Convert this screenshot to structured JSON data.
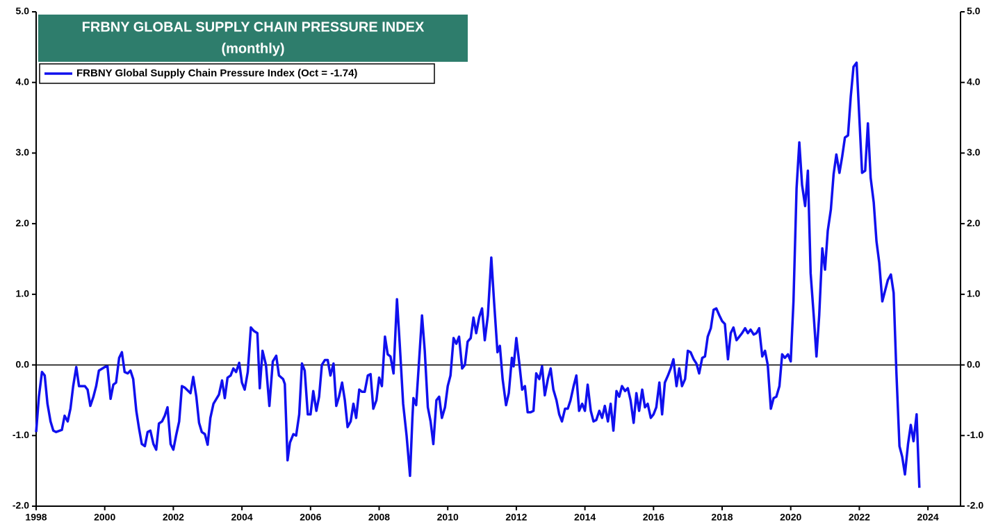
{
  "chart_data": {
    "type": "line",
    "title": "FRBNY GLOBAL SUPPLY CHAIN PRESSURE INDEX",
    "subtitle": "(monthly)",
    "xlim": [
      1998,
      2024.95
    ],
    "xticks": [
      1998,
      2000,
      2002,
      2004,
      2006,
      2008,
      2010,
      2012,
      2014,
      2016,
      2018,
      2020,
      2022,
      2024
    ],
    "ylim": [
      -2,
      5
    ],
    "yticks": [
      {
        "value": -2,
        "label": "-2.0"
      },
      {
        "value": -1,
        "label": "-1.0"
      },
      {
        "value": 0,
        "label": "0.0"
      },
      {
        "value": 1,
        "label": "1.0"
      },
      {
        "value": 2,
        "label": "2.0"
      },
      {
        "value": 3,
        "label": "3.0"
      },
      {
        "value": 4,
        "label": "4.0"
      },
      {
        "value": 5,
        "label": "5.0"
      }
    ],
    "y2lim": [
      -2,
      5
    ],
    "y2ticks": [
      {
        "value": -2,
        "label": "-2.0"
      },
      {
        "value": -1,
        "label": "-1.0"
      },
      {
        "value": 0,
        "label": "0.0"
      },
      {
        "value": 1,
        "label": "1.0"
      },
      {
        "value": 2,
        "label": "2.0"
      },
      {
        "value": 3,
        "label": "3.0"
      },
      {
        "value": 4,
        "label": "4.0"
      },
      {
        "value": 5,
        "label": "5.0"
      }
    ],
    "reference_line": 0,
    "legend": "top-left",
    "x": [
      1998,
      1998.08,
      1998.17,
      1998.25,
      1998.33,
      1998.42,
      1998.5,
      1998.58,
      1998.75,
      1998.83,
      1998.92,
      1999,
      1999.08,
      1999.17,
      1999.25,
      1999.42,
      1999.5,
      1999.58,
      1999.67,
      1999.75,
      1999.83,
      2000,
      2000.08,
      2000.17,
      2000.25,
      2000.33,
      2000.42,
      2000.5,
      2000.58,
      2000.67,
      2000.75,
      2000.83,
      2000.92,
      2001,
      2001.08,
      2001.17,
      2001.25,
      2001.33,
      2001.42,
      2001.5,
      2001.58,
      2001.67,
      2001.75,
      2001.83,
      2001.92,
      2002,
      2002.08,
      2002.17,
      2002.25,
      2002.33,
      2002.5,
      2002.58,
      2002.67,
      2002.75,
      2002.83,
      2002.92,
      2003,
      2003.08,
      2003.17,
      2003.33,
      2003.42,
      2003.5,
      2003.58,
      2003.67,
      2003.75,
      2003.83,
      2003.92,
      2004,
      2004.08,
      2004.17,
      2004.26,
      2004.35,
      2004.45,
      2004.52,
      2004.6,
      2004.7,
      2004.8,
      2004.9,
      2005,
      2005.08,
      2005.2,
      2005.25,
      2005.33,
      2005.4,
      2005.5,
      2005.58,
      2005.67,
      2005.75,
      2005.83,
      2005.92,
      2006,
      2006.08,
      2006.17,
      2006.25,
      2006.33,
      2006.42,
      2006.5,
      2006.58,
      2006.67,
      2006.75,
      2006.83,
      2006.92,
      2007,
      2007.08,
      2007.17,
      2007.25,
      2007.33,
      2007.42,
      2007.5,
      2007.58,
      2007.67,
      2007.75,
      2007.83,
      2007.92,
      2008,
      2008.08,
      2008.17,
      2008.25,
      2008.33,
      2008.42,
      2008.52,
      2008.6,
      2008.7,
      2008.8,
      2008.9,
      2008.97,
      2009,
      2009.08,
      2009.17,
      2009.25,
      2009.33,
      2009.42,
      2009.5,
      2009.58,
      2009.67,
      2009.75,
      2009.83,
      2009.92,
      2010,
      2010.08,
      2010.17,
      2010.25,
      2010.33,
      2010.42,
      2010.5,
      2010.58,
      2010.67,
      2010.75,
      2010.83,
      2010.92,
      2011,
      2011.08,
      2011.17,
      2011.27,
      2011.35,
      2011.45,
      2011.52,
      2011.6,
      2011.7,
      2011.78,
      2011.87,
      2011.92,
      2012,
      2012.08,
      2012.17,
      2012.25,
      2012.33,
      2012.42,
      2012.5,
      2012.58,
      2012.67,
      2012.75,
      2012.83,
      2012.92,
      2013,
      2013.08,
      2013.17,
      2013.25,
      2013.33,
      2013.42,
      2013.5,
      2013.58,
      2013.67,
      2013.75,
      2013.83,
      2013.92,
      2014,
      2014.08,
      2014.17,
      2014.25,
      2014.33,
      2014.42,
      2014.5,
      2014.58,
      2014.67,
      2014.75,
      2014.83,
      2014.92,
      2015,
      2015.08,
      2015.17,
      2015.25,
      2015.33,
      2015.42,
      2015.5,
      2015.58,
      2015.67,
      2015.75,
      2015.83,
      2015.92,
      2016,
      2016.08,
      2016.17,
      2016.25,
      2016.33,
      2016.42,
      2016.5,
      2016.58,
      2016.67,
      2016.75,
      2016.83,
      2016.92,
      2017,
      2017.08,
      2017.17,
      2017.25,
      2017.33,
      2017.42,
      2017.5,
      2017.58,
      2017.67,
      2017.75,
      2017.83,
      2017.92,
      2018,
      2018.08,
      2018.17,
      2018.25,
      2018.33,
      2018.42,
      2018.5,
      2018.58,
      2018.67,
      2018.75,
      2018.83,
      2018.92,
      2019,
      2019.08,
      2019.17,
      2019.25,
      2019.33,
      2019.42,
      2019.5,
      2019.58,
      2019.67,
      2019.75,
      2019.83,
      2019.92,
      2020,
      2020.08,
      2020.17,
      2020.25,
      2020.33,
      2020.42,
      2020.5,
      2020.58,
      2020.67,
      2020.75,
      2020.83,
      2020.92,
      2021,
      2021.08,
      2021.17,
      2021.25,
      2021.33,
      2021.42,
      2021.5,
      2021.58,
      2021.67,
      2021.75,
      2021.83,
      2021.92,
      2022,
      2022.08,
      2022.17,
      2022.25,
      2022.33,
      2022.42,
      2022.5,
      2022.58,
      2022.67,
      2022.75,
      2022.83,
      2022.92,
      2023,
      2023.08,
      2023.17,
      2023.25,
      2023.33,
      2023.42,
      2023.5,
      2023.58,
      2023.67,
      2023.75
    ],
    "series": [
      {
        "name": "FRBNY Global Supply Chain Pressure Index (Oct = -1.74)",
        "color": "#1010ee",
        "values": [
          -0.95,
          -0.45,
          -0.1,
          -0.15,
          -0.55,
          -0.8,
          -0.93,
          -0.95,
          -0.92,
          -0.72,
          -0.8,
          -0.62,
          -0.3,
          -0.03,
          -0.3,
          -0.3,
          -0.35,
          -0.58,
          -0.45,
          -0.3,
          -0.08,
          -0.03,
          -0.02,
          -0.48,
          -0.28,
          -0.25,
          0.1,
          0.18,
          -0.1,
          -0.12,
          -0.08,
          -0.2,
          -0.65,
          -0.9,
          -1.12,
          -1.15,
          -0.95,
          -0.93,
          -1.12,
          -1.2,
          -0.83,
          -0.8,
          -0.72,
          -0.6,
          -1.12,
          -1.2,
          -1.0,
          -0.8,
          -0.3,
          -0.32,
          -0.4,
          -0.17,
          -0.45,
          -0.82,
          -0.95,
          -0.98,
          -1.13,
          -0.75,
          -0.55,
          -0.42,
          -0.22,
          -0.47,
          -0.18,
          -0.15,
          -0.05,
          -0.1,
          0.03,
          -0.25,
          -0.35,
          -0.1,
          0.53,
          0.48,
          0.45,
          -0.33,
          0.2,
          0.0,
          -0.58,
          0.05,
          0.13,
          -0.15,
          -0.2,
          -0.27,
          -1.35,
          -1.1,
          -0.98,
          -1.0,
          -0.7,
          0.02,
          -0.08,
          -0.7,
          -0.7,
          -0.37,
          -0.65,
          -0.45,
          0.0,
          0.07,
          0.07,
          -0.15,
          0.02,
          -0.58,
          -0.45,
          -0.25,
          -0.5,
          -0.88,
          -0.8,
          -0.55,
          -0.75,
          -0.35,
          -0.38,
          -0.38,
          -0.15,
          -0.13,
          -0.62,
          -0.5,
          -0.18,
          -0.3,
          0.4,
          0.15,
          0.12,
          -0.12,
          0.93,
          0.3,
          -0.55,
          -1.0,
          -1.57,
          -0.75,
          -0.47,
          -0.57,
          0.1,
          0.7,
          0.2,
          -0.6,
          -0.8,
          -1.12,
          -0.5,
          -0.45,
          -0.75,
          -0.6,
          -0.3,
          -0.15,
          0.38,
          0.3,
          0.4,
          -0.05,
          0.0,
          0.33,
          0.38,
          0.67,
          0.45,
          0.68,
          0.8,
          0.35,
          0.7,
          1.52,
          0.9,
          0.18,
          0.27,
          -0.2,
          -0.57,
          -0.4,
          0.1,
          -0.02,
          0.38,
          0.05,
          -0.35,
          -0.3,
          -0.67,
          -0.67,
          -0.65,
          -0.12,
          -0.2,
          -0.02,
          -0.43,
          -0.2,
          -0.05,
          -0.35,
          -0.5,
          -0.7,
          -0.8,
          -0.62,
          -0.62,
          -0.5,
          -0.3,
          -0.15,
          -0.65,
          -0.55,
          -0.65,
          -0.28,
          -0.65,
          -0.8,
          -0.78,
          -0.65,
          -0.75,
          -0.58,
          -0.8,
          -0.55,
          -0.93,
          -0.37,
          -0.45,
          -0.3,
          -0.37,
          -0.33,
          -0.5,
          -0.82,
          -0.4,
          -0.65,
          -0.35,
          -0.6,
          -0.55,
          -0.75,
          -0.7,
          -0.6,
          -0.25,
          -0.7,
          -0.25,
          -0.15,
          -0.05,
          0.08,
          -0.3,
          -0.05,
          -0.3,
          -0.2,
          0.2,
          0.18,
          0.08,
          0.02,
          -0.12,
          0.1,
          0.12,
          0.4,
          0.52,
          0.78,
          0.8,
          0.7,
          0.62,
          0.58,
          0.08,
          0.45,
          0.53,
          0.35,
          0.4,
          0.45,
          0.52,
          0.45,
          0.5,
          0.43,
          0.45,
          0.52,
          0.12,
          0.2,
          0.0,
          -0.62,
          -0.47,
          -0.45,
          -0.3,
          0.15,
          0.1,
          0.15,
          0.05,
          0.9,
          2.5,
          3.15,
          2.55,
          2.25,
          2.75,
          1.3,
          0.7,
          0.12,
          0.7,
          1.65,
          1.35,
          1.9,
          2.2,
          2.7,
          2.98,
          2.72,
          2.95,
          3.22,
          3.25,
          3.8,
          4.22,
          4.28,
          3.5,
          2.72,
          2.75,
          3.42,
          2.65,
          2.3,
          1.75,
          1.45,
          0.9,
          1.05,
          1.2,
          1.28,
          1.02,
          -0.1,
          -1.15,
          -1.3,
          -1.55,
          -1.12,
          -0.85,
          -1.08,
          -0.7,
          -1.74
        ]
      }
    ]
  }
}
